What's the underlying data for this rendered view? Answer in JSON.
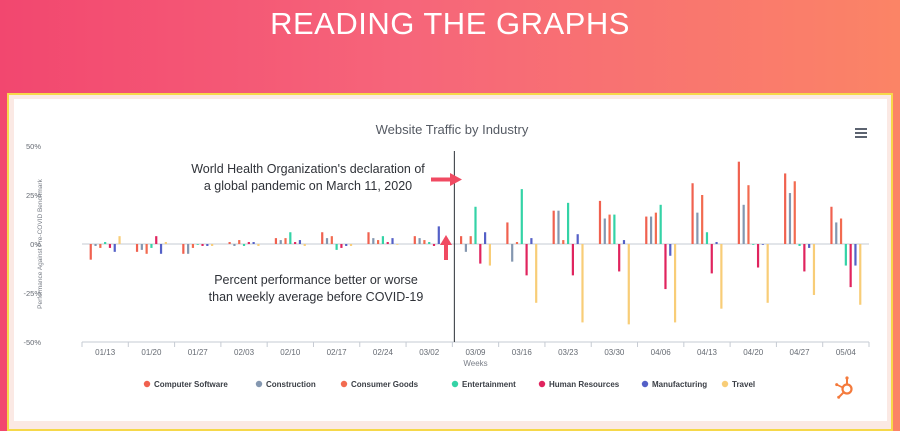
{
  "slide": {
    "title": "READING THE GRAPHS"
  },
  "chart_data": {
    "type": "bar",
    "title": "Website Traffic by Industry",
    "xlabel": "Weeks",
    "ylabel": "Performance Against Pre-COVID Benchmark",
    "ylim": [
      -50,
      50
    ],
    "yticks": [
      "50%",
      "25%",
      "0%",
      "-25%",
      "-50%"
    ],
    "grid": false,
    "legend_position": "bottom",
    "categories": [
      "01/13",
      "01/20",
      "01/27",
      "02/03",
      "02/10",
      "02/17",
      "02/24",
      "03/02",
      "03/09",
      "03/16",
      "03/23",
      "03/30",
      "04/06",
      "04/13",
      "04/20",
      "04/27",
      "05/04"
    ],
    "series": [
      {
        "name": "Computer Software",
        "color": "#f0614f",
        "values": [
          -8,
          -4,
          -5,
          1,
          3,
          6,
          6,
          4,
          4,
          11,
          17,
          22,
          14,
          31,
          42,
          36,
          19
        ]
      },
      {
        "name": "Construction",
        "color": "#8497b0",
        "values": [
          -1,
          -3,
          -5,
          -1,
          2,
          3,
          3,
          3,
          -4,
          -9,
          17,
          13,
          14,
          16,
          20,
          26,
          11
        ]
      },
      {
        "name": "Consumer Goods",
        "color": "#f26b50",
        "values": [
          -2,
          -5,
          -2,
          2,
          3,
          4,
          2,
          2,
          4,
          1,
          2,
          15,
          16,
          25,
          30,
          32,
          13
        ]
      },
      {
        "name": "Entertainment",
        "color": "#34d3a6",
        "values": [
          1,
          -2,
          0,
          -1,
          6,
          -3,
          4,
          1,
          19,
          28,
          21,
          15,
          20,
          6,
          0,
          -1,
          -11
        ]
      },
      {
        "name": "Human Resources",
        "color": "#e0245e",
        "values": [
          -2,
          4,
          -1,
          1,
          1,
          -2,
          1,
          -1,
          -10,
          -16,
          -16,
          -14,
          -23,
          -15,
          -12,
          -14,
          -22
        ]
      },
      {
        "name": "Manufacturing",
        "color": "#5460c7",
        "values": [
          -4,
          -5,
          -1,
          1,
          2,
          -1,
          3,
          9,
          6,
          3,
          5,
          2,
          -6,
          1,
          0,
          -2,
          -11
        ]
      },
      {
        "name": "Travel",
        "color": "#f8cd77",
        "values": [
          4,
          1,
          -1,
          -1,
          -1,
          -1,
          0,
          1,
          -11,
          -30,
          -40,
          -41,
          -40,
          -33,
          -30,
          -26,
          -31
        ]
      }
    ],
    "annotations": [
      {
        "text_lines": [
          "World Health Organization's declaration of",
          "a global pandemic on March 11, 2020"
        ]
      },
      {
        "text_lines": [
          "Percent performance better or worse",
          "than weekly average before COVID-19"
        ]
      }
    ]
  },
  "theme": {
    "arrow_color": "#f04a62",
    "axis_color": "#c6cbd3",
    "marker_line_color": "#2b2f36"
  }
}
